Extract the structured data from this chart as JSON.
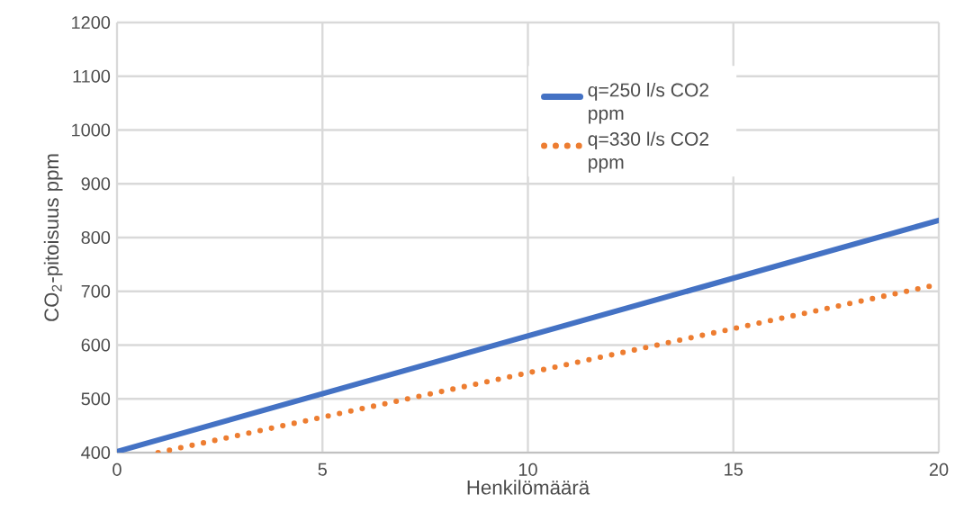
{
  "chart_data": {
    "type": "line",
    "xlabel": "Henkilömäärä",
    "ylabel": "CO$_{2}$-pitoisuus ppm",
    "xlim": [
      0,
      20
    ],
    "ylim": [
      400,
      1200
    ],
    "xticks": [
      0,
      5,
      10,
      15,
      20
    ],
    "yticks": [
      400,
      500,
      600,
      700,
      800,
      900,
      1000,
      1100,
      1200
    ],
    "grid": true,
    "legend": "top right",
    "marker": "none",
    "series": [
      {
        "name": "q=250 l/s CO2 ppm",
        "color": "#4472c4",
        "line_style": "solid",
        "x": [
          0,
          20
        ],
        "values": [
          402,
          832
        ]
      },
      {
        "name": "q=330 l/s CO2 ppm",
        "color": "#ed7d31",
        "line_style": "dotted",
        "x": [
          1,
          20
        ],
        "values": [
          400,
          713
        ]
      }
    ]
  }
}
